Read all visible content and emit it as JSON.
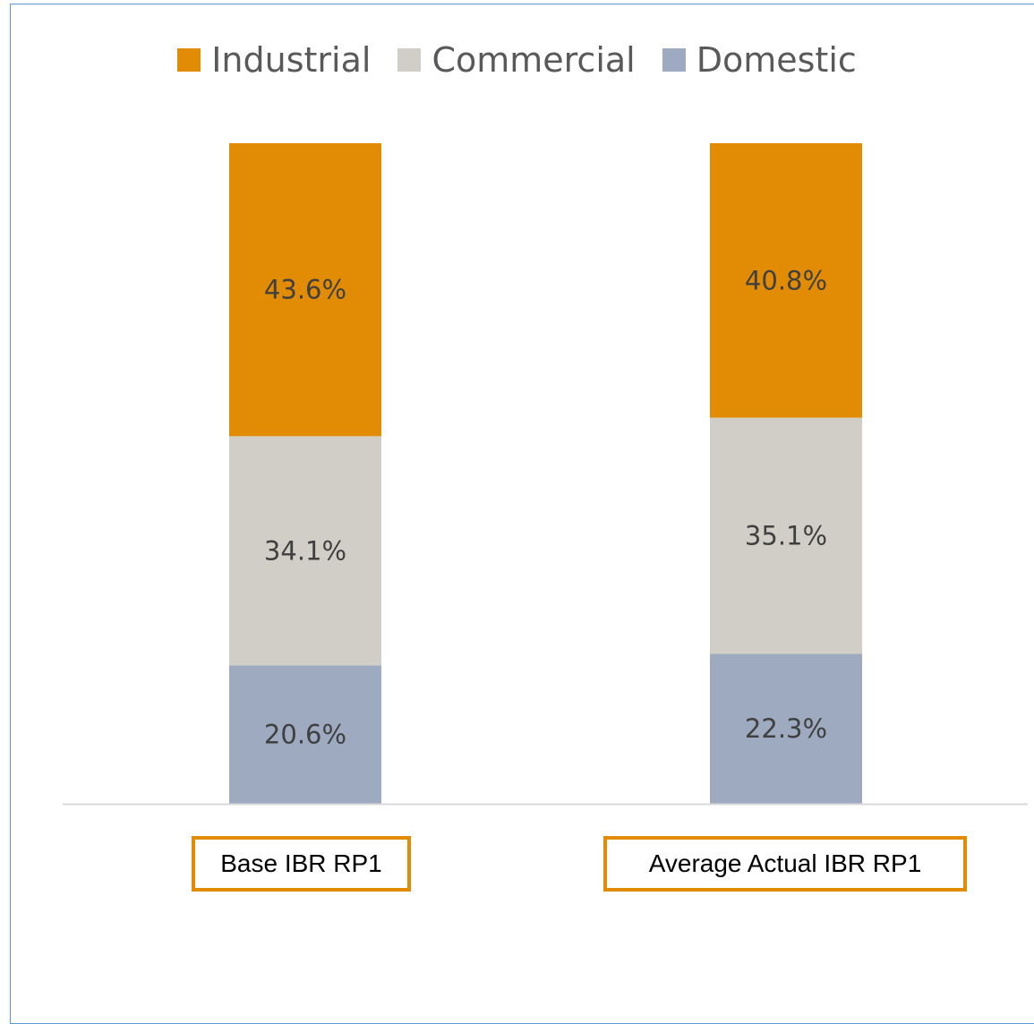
{
  "chart_data": {
    "type": "bar",
    "stacked": true,
    "categories": [
      "Base IBR RP1",
      "Average Actual IBR RP1"
    ],
    "series": [
      {
        "name": "Domestic",
        "values": [
          20.6,
          22.3
        ],
        "labels": [
          "20.6%",
          "22.3%"
        ],
        "color": "#9daabf"
      },
      {
        "name": "Commercial",
        "values": [
          34.1,
          35.1
        ],
        "labels": [
          "34.1%",
          "35.1%"
        ],
        "color": "#d0cec7"
      },
      {
        "name": "Industrial",
        "values": [
          43.6,
          40.8
        ],
        "labels": [
          "43.6%",
          "40.8%"
        ],
        "color": "#e28c05"
      }
    ],
    "legend_order": [
      "Industrial",
      "Commercial",
      "Domestic"
    ],
    "legend_position": "top",
    "grid": false,
    "ylim": [
      0,
      100
    ],
    "value_unit": "%",
    "axis_color": "#d9d9d9",
    "frame_color": "#5b9bd5",
    "category_box_color": "#e28c05"
  }
}
